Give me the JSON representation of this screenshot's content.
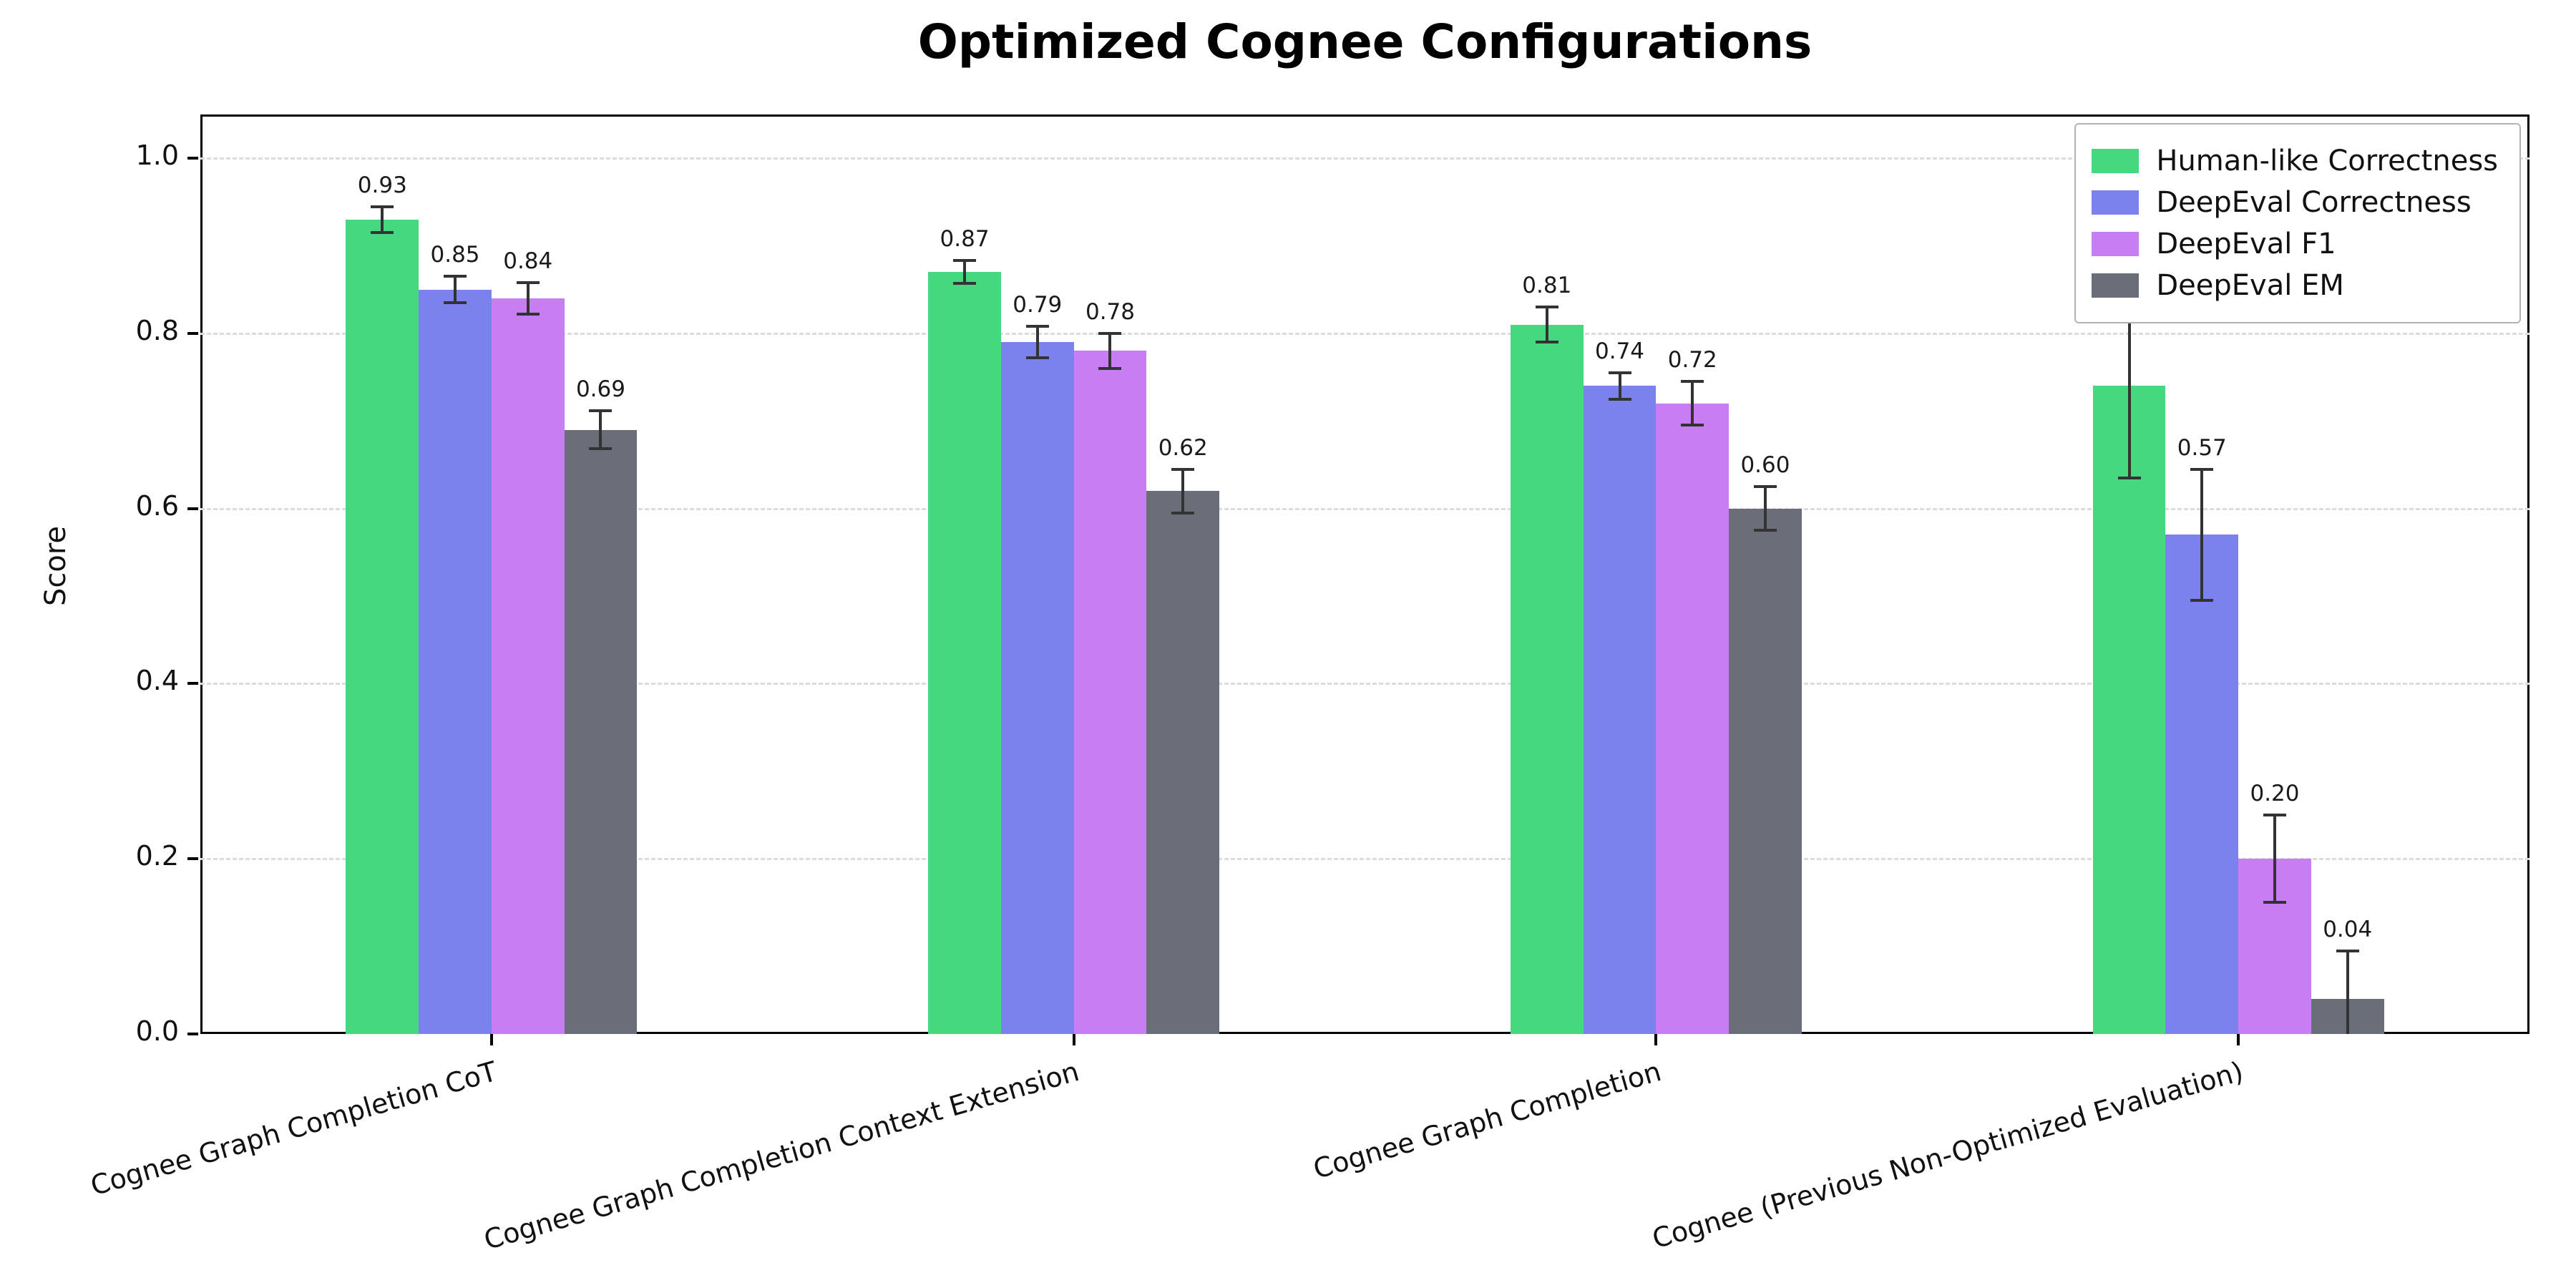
{
  "chart_data": {
    "type": "bar",
    "title": "Optimized Cognee Configurations",
    "xlabel": "",
    "ylabel": "Score",
    "ylim": [
      0,
      1.05
    ],
    "yticks": [
      0.0,
      0.2,
      0.4,
      0.6,
      0.8,
      1.0
    ],
    "grid": "horizontal-dashed",
    "legend_position": "upper-right",
    "value_labels": true,
    "error_bars": true,
    "categories": [
      "Cognee Graph Completion CoT",
      "Cognee Graph Completion Context Extension",
      "Cognee Graph Completion",
      "Cognee (Previous Non-Optimized Evaluation)"
    ],
    "series": [
      {
        "name": "Human-like Correctness",
        "color": "#45d87f",
        "values": [
          0.93,
          0.87,
          0.81,
          0.74
        ],
        "errors": [
          0.015,
          0.013,
          0.02,
          0.105
        ]
      },
      {
        "name": "DeepEval Correctness",
        "color": "#7b82ee",
        "values": [
          0.85,
          0.79,
          0.74,
          0.57
        ],
        "errors": [
          0.015,
          0.018,
          0.015,
          0.075
        ]
      },
      {
        "name": "DeepEval F1",
        "color": "#c67ef2",
        "values": [
          0.84,
          0.78,
          0.72,
          0.2
        ],
        "errors": [
          0.018,
          0.02,
          0.025,
          0.05
        ]
      },
      {
        "name": "DeepEval EM",
        "color": "#6a6e79",
        "values": [
          0.69,
          0.62,
          0.6,
          0.04
        ],
        "errors": [
          0.022,
          0.025,
          0.025,
          0.055
        ]
      }
    ],
    "colors": {
      "grid": "#dcdcdc",
      "error_bar": "#333333",
      "text": "#111111"
    }
  }
}
